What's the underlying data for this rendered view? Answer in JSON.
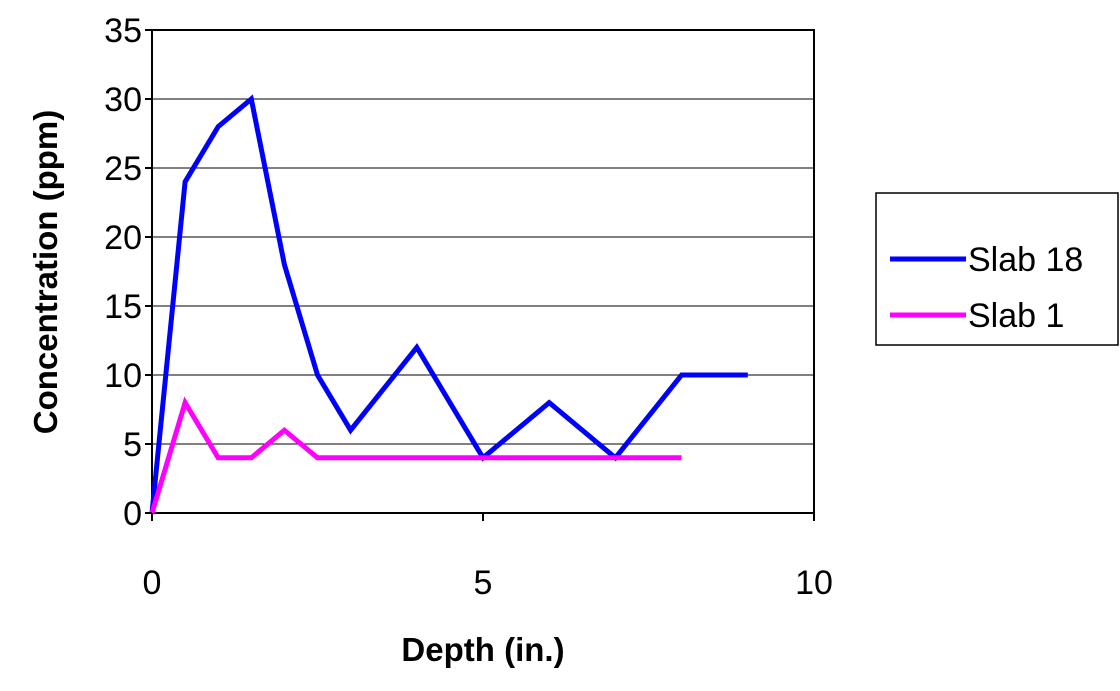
{
  "chart_data": {
    "type": "line",
    "title": "",
    "xlabel": "Depth (in.)",
    "ylabel": "Concentration (ppm)",
    "xlim": [
      0,
      10
    ],
    "ylim": [
      0,
      35
    ],
    "x_ticks": [
      0,
      5,
      10
    ],
    "y_ticks": [
      0,
      5,
      10,
      15,
      20,
      25,
      30,
      35
    ],
    "grid": "horizontal",
    "legend": "right",
    "series": [
      {
        "name": "Slab 18",
        "color": "#0000ff",
        "x": [
          0,
          0.5,
          1,
          1.5,
          2,
          2.5,
          3,
          4,
          5,
          6,
          7,
          8,
          9
        ],
        "y": [
          0,
          24,
          28,
          30,
          18,
          10,
          6,
          12,
          4,
          8,
          4,
          10,
          10
        ]
      },
      {
        "name": "Slab 1",
        "color": "#ff00ff",
        "x": [
          0,
          0.5,
          1,
          1.5,
          2,
          2.5,
          3,
          4,
          5,
          6,
          7,
          8
        ],
        "y": [
          0,
          8,
          4,
          4,
          6,
          4,
          4,
          4,
          4,
          4,
          4,
          4
        ]
      }
    ]
  }
}
